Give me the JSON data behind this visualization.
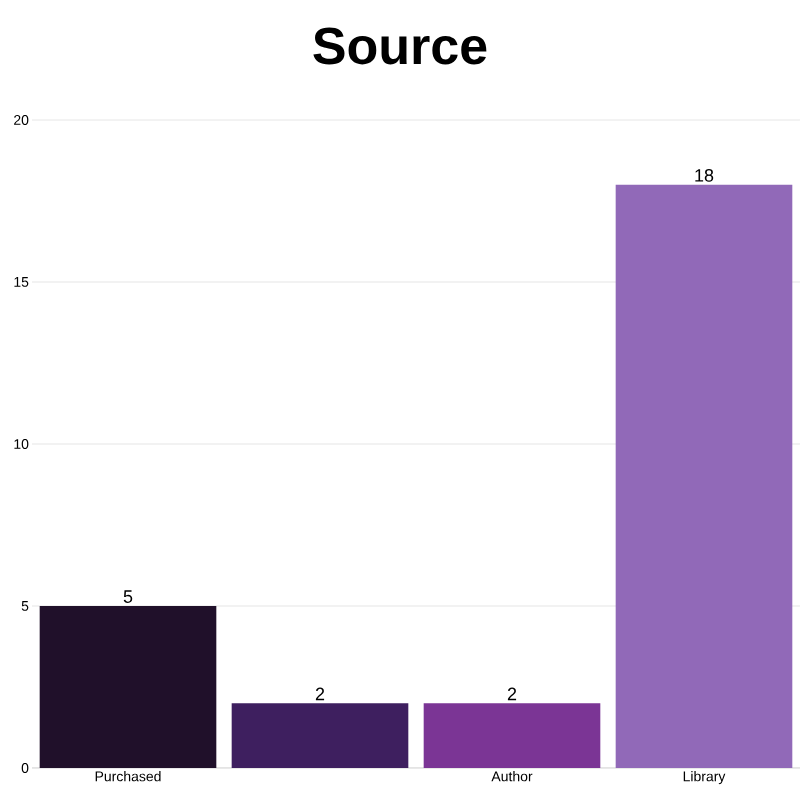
{
  "chart_data": {
    "type": "bar",
    "title": "Source",
    "categories": [
      "Purchased",
      null,
      "Author",
      "Library"
    ],
    "values": [
      5,
      2,
      2,
      18
    ],
    "colors": [
      "#20102a",
      "#3e1f5f",
      "#7b3595",
      "#9169b8"
    ],
    "ylim": [
      0,
      20
    ],
    "yticks": [
      0,
      5,
      10,
      15,
      20
    ],
    "grid": "y",
    "data_labels": true
  }
}
